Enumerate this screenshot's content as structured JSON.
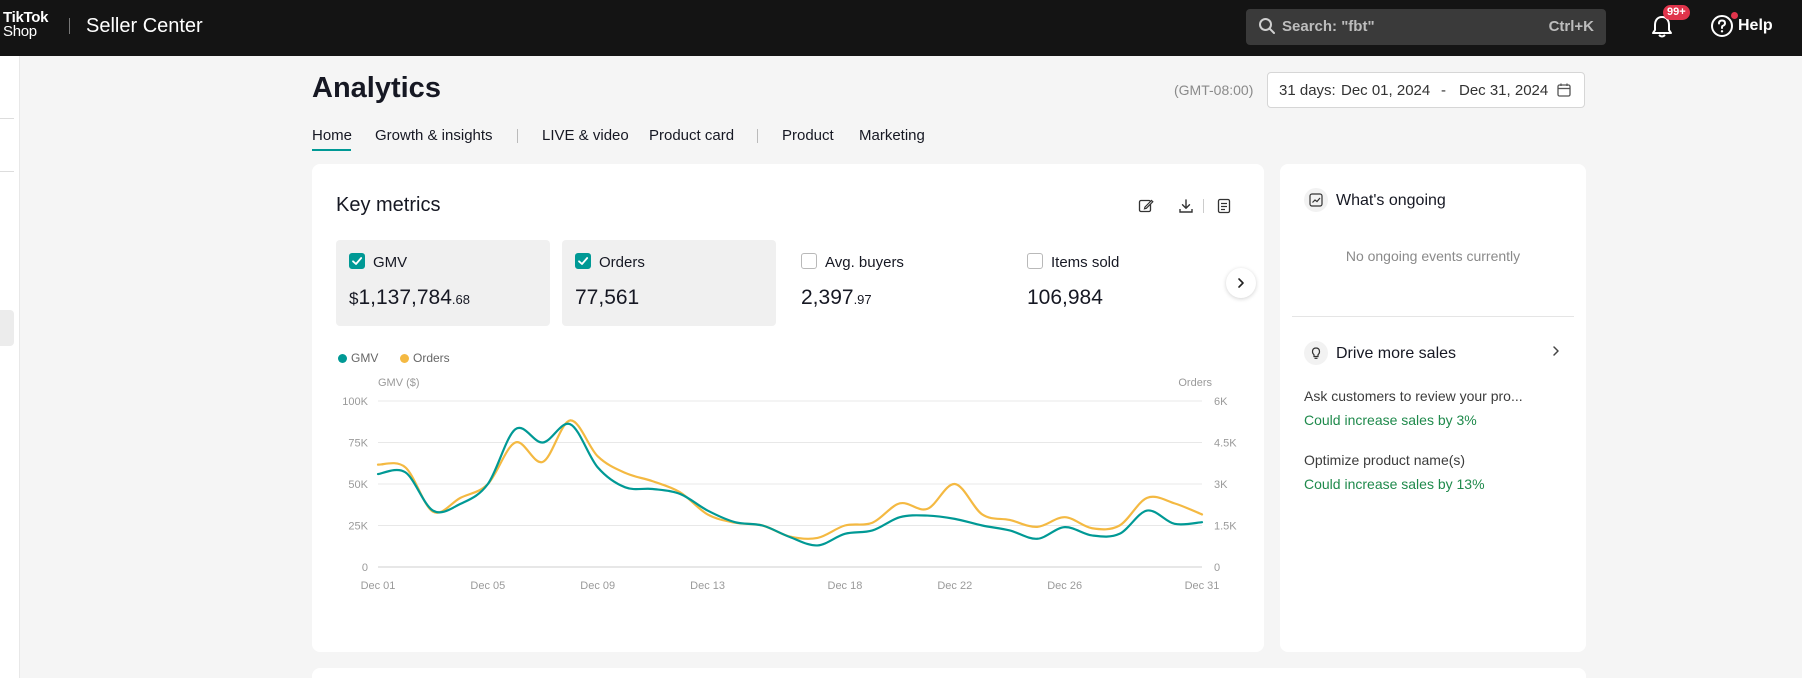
{
  "topbar": {
    "logo_line1": "TikTok",
    "logo_line2": "Shop",
    "app_name": "Seller Center",
    "search_placeholder": "Search: \"fbt\"",
    "search_shortcut": "Ctrl+K",
    "notification_badge": "99+",
    "help_label": "Help"
  },
  "header": {
    "title": "Analytics",
    "timezone": "(GMT-08:00)",
    "date_prefix": "31 days:",
    "date_start": "Dec 01, 2024",
    "date_dash": "-",
    "date_end": "Dec 31, 2024"
  },
  "tabs": [
    {
      "label": "Home",
      "active": true
    },
    {
      "label": "Growth & insights"
    },
    {
      "label": "LIVE & video"
    },
    {
      "label": "Product card"
    },
    {
      "label": "Product"
    },
    {
      "label": "Marketing"
    }
  ],
  "key_metrics": {
    "title": "Key metrics",
    "metrics": [
      {
        "label": "GMV",
        "checked": true,
        "currency": "$",
        "value": "1,137,784",
        "decimals": ".68"
      },
      {
        "label": "Orders",
        "checked": true,
        "value": "77,561",
        "decimals": ""
      },
      {
        "label": "Avg. buyers",
        "checked": false,
        "value": "2,397",
        "decimals": ".97"
      },
      {
        "label": "Items sold",
        "checked": false,
        "value": "106,984",
        "decimals": ""
      }
    ]
  },
  "chart_data": {
    "type": "line",
    "legend": [
      "GMV",
      "Orders"
    ],
    "y_left_label": "GMV ($)",
    "y_right_label": "Orders",
    "y_left_ticks": [
      "100K",
      "75K",
      "50K",
      "25K",
      "0"
    ],
    "y_right_ticks": [
      "6K",
      "4.5K",
      "3K",
      "1.5K",
      "0"
    ],
    "ylim_left": [
      0,
      100000
    ],
    "ylim_right": [
      0,
      6000
    ],
    "x_tick_labels": [
      "Dec 01",
      "Dec 05",
      "Dec 09",
      "Dec 13",
      "Dec 18",
      "Dec 22",
      "Dec 26",
      "Dec 31"
    ],
    "x": [
      "Dec 01",
      "Dec 02",
      "Dec 03",
      "Dec 04",
      "Dec 05",
      "Dec 06",
      "Dec 07",
      "Dec 08",
      "Dec 09",
      "Dec 10",
      "Dec 11",
      "Dec 12",
      "Dec 13",
      "Dec 14",
      "Dec 15",
      "Dec 16",
      "Dec 17",
      "Dec 18",
      "Dec 19",
      "Dec 20",
      "Dec 21",
      "Dec 22",
      "Dec 23",
      "Dec 24",
      "Dec 25",
      "Dec 26",
      "Dec 27",
      "Dec 28",
      "Dec 29",
      "Dec 30",
      "Dec 31"
    ],
    "series": [
      {
        "name": "GMV",
        "axis": "left",
        "color": "#009995",
        "values": [
          56000,
          57000,
          34000,
          38000,
          50000,
          83000,
          75000,
          86000,
          60000,
          48000,
          47000,
          44000,
          34000,
          27000,
          25000,
          18000,
          13000,
          20000,
          22000,
          30000,
          31000,
          29000,
          25000,
          22000,
          17000,
          24000,
          19000,
          20000,
          34000,
          26000,
          27000
        ]
      },
      {
        "name": "Orders",
        "axis": "right",
        "color": "#f4b942",
        "values": [
          3700,
          3600,
          2000,
          2500,
          3000,
          4500,
          3800,
          5300,
          4000,
          3400,
          3100,
          2700,
          1900,
          1600,
          1500,
          1100,
          1050,
          1500,
          1600,
          2300,
          2100,
          3000,
          1900,
          1700,
          1450,
          1800,
          1400,
          1500,
          2500,
          2300,
          1900
        ]
      }
    ]
  },
  "side": {
    "ongoing_title": "What's ongoing",
    "ongoing_empty": "No ongoing events currently",
    "drive_title": "Drive more sales",
    "suggestions": [
      {
        "title": "Ask customers to review your pro...",
        "impact": "Could increase sales by 3%"
      },
      {
        "title": "Optimize product name(s)",
        "impact": "Could increase sales by 13%"
      }
    ]
  }
}
